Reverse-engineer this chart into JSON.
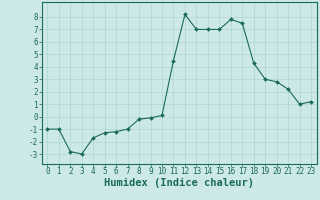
{
  "x": [
    0,
    1,
    2,
    3,
    4,
    5,
    6,
    7,
    8,
    9,
    10,
    11,
    12,
    13,
    14,
    15,
    16,
    17,
    18,
    19,
    20,
    21,
    22,
    23
  ],
  "y": [
    -1,
    -1,
    -2.8,
    -3,
    -1.7,
    -1.3,
    -1.2,
    -1,
    -0.2,
    -0.1,
    0.1,
    4.5,
    8.2,
    7,
    7,
    7,
    7.8,
    7.5,
    4.3,
    3,
    2.8,
    2.2,
    1,
    1.2
  ],
  "xlabel": "Humidex (Indice chaleur)",
  "xlim": [
    -0.5,
    23.5
  ],
  "ylim": [
    -3.8,
    9.2
  ],
  "xticks": [
    0,
    1,
    2,
    3,
    4,
    5,
    6,
    7,
    8,
    9,
    10,
    11,
    12,
    13,
    14,
    15,
    16,
    17,
    18,
    19,
    20,
    21,
    22,
    23
  ],
  "yticks": [
    -3,
    -2,
    -1,
    0,
    1,
    2,
    3,
    4,
    5,
    6,
    7,
    8
  ],
  "line_color": "#1a6b5a",
  "marker_color": "#1a6b5a",
  "bg_color": "#cce8e8",
  "grid_color": "#aed4d4",
  "axis_color": "#1a6b5a",
  "tick_label_fontsize": 5.5,
  "xlabel_fontsize": 7.5
}
